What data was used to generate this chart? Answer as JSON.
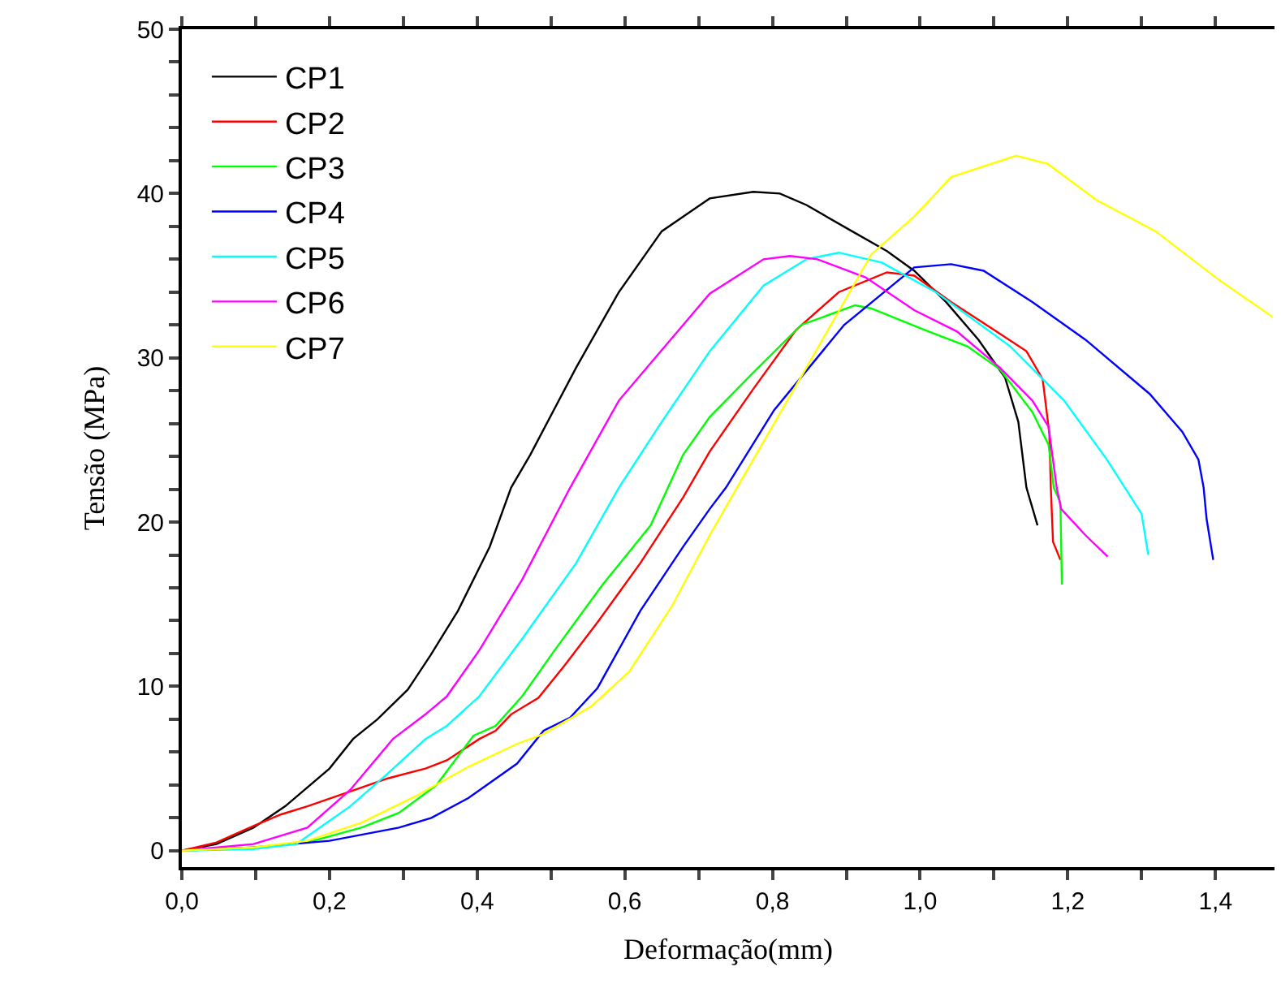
{
  "chart_data": {
    "type": "line",
    "xlabel": "Deformação(mm)",
    "ylabel": "Tensão (MPa)",
    "xlim": [
      0,
      1.48
    ],
    "ylim": [
      -1,
      50
    ],
    "xticks": [
      {
        "value": 0,
        "label": "0,0"
      },
      {
        "value": 0.1,
        "label": null
      },
      {
        "value": 0.2,
        "label": "0,2"
      },
      {
        "value": 0.3,
        "label": null
      },
      {
        "value": 0.4,
        "label": "0,4"
      },
      {
        "value": 0.5,
        "label": null
      },
      {
        "value": 0.6,
        "label": "0,6"
      },
      {
        "value": 0.7,
        "label": null
      },
      {
        "value": 0.8,
        "label": "0,8"
      },
      {
        "value": 0.9,
        "label": null
      },
      {
        "value": 1.0,
        "label": "1,0"
      },
      {
        "value": 1.1,
        "label": null
      },
      {
        "value": 1.2,
        "label": "1,2"
      },
      {
        "value": 1.3,
        "label": null
      },
      {
        "value": 1.4,
        "label": "1,4"
      }
    ],
    "yticks": [
      0,
      {
        "value": 2,
        "label": null
      },
      {
        "value": 4,
        "label": null
      },
      {
        "value": 6,
        "label": null
      },
      {
        "value": 8,
        "label": null
      },
      10,
      {
        "value": 12,
        "label": null
      },
      {
        "value": 14,
        "label": null
      },
      {
        "value": 16,
        "label": null
      },
      {
        "value": 18,
        "label": null
      },
      20,
      {
        "value": 22,
        "label": null
      },
      {
        "value": 24,
        "label": null
      },
      {
        "value": 26,
        "label": null
      },
      {
        "value": 28,
        "label": null
      },
      30,
      {
        "value": 32,
        "label": null
      },
      {
        "value": 34,
        "label": null
      },
      {
        "value": 36,
        "label": null
      },
      {
        "value": 38,
        "label": null
      },
      40,
      {
        "value": 42,
        "label": null
      },
      {
        "value": 44,
        "label": null
      },
      {
        "value": 46,
        "label": null
      },
      {
        "value": 48,
        "label": null
      },
      50
    ],
    "legend": "top left",
    "marker": "none",
    "line_style": "solid",
    "series": [
      {
        "name": "CP1",
        "color": "#000000",
        "x": [
          0,
          0.047,
          0.097,
          0.14,
          0.2,
          0.232,
          0.265,
          0.306,
          0.337,
          0.374,
          0.417,
          0.446,
          0.472,
          0.534,
          0.592,
          0.65,
          0.715,
          0.774,
          0.81,
          0.846,
          0.904,
          0.955,
          0.992,
          1.035,
          1.079,
          1.115,
          1.133,
          1.144,
          1.159
        ],
        "values": [
          0,
          0.4,
          1.4,
          2.7,
          5.0,
          6.8,
          8.0,
          9.8,
          11.9,
          14.6,
          18.5,
          22.1,
          24.1,
          29.4,
          34.0,
          37.7,
          39.7,
          40.1,
          40.0,
          39.3,
          37.8,
          36.5,
          35.3,
          33.4,
          31.1,
          28.8,
          26.1,
          22.1,
          19.8
        ]
      },
      {
        "name": "CP2",
        "color": "#ff0000",
        "x": [
          0,
          0.047,
          0.097,
          0.134,
          0.17,
          0.228,
          0.279,
          0.33,
          0.359,
          0.403,
          0.425,
          0.446,
          0.483,
          0.519,
          0.563,
          0.621,
          0.679,
          0.715,
          0.774,
          0.832,
          0.89,
          0.955,
          0.992,
          1.042,
          1.1,
          1.144,
          1.166,
          1.175,
          1.177,
          1.18,
          1.19
        ],
        "values": [
          0,
          0.5,
          1.5,
          2.2,
          2.7,
          3.6,
          4.4,
          5.0,
          5.5,
          6.8,
          7.3,
          8.3,
          9.3,
          11.3,
          13.9,
          17.5,
          21.5,
          24.3,
          28.1,
          31.7,
          34.0,
          35.2,
          35.0,
          33.4,
          31.7,
          30.4,
          28.7,
          25.4,
          22.1,
          18.8,
          17.7
        ]
      },
      {
        "name": "CP3",
        "color": "#00ff00",
        "x": [
          0,
          0.097,
          0.17,
          0.243,
          0.294,
          0.345,
          0.395,
          0.425,
          0.461,
          0.505,
          0.57,
          0.635,
          0.679,
          0.715,
          0.774,
          0.839,
          0.912,
          0.934,
          1.006,
          1.064,
          1.108,
          1.152,
          1.174,
          1.181,
          1.19,
          1.192
        ],
        "values": [
          0,
          0.2,
          0.5,
          1.4,
          2.3,
          4.0,
          7.0,
          7.6,
          9.4,
          12.2,
          16.2,
          19.8,
          24.1,
          26.4,
          29.1,
          32.0,
          33.2,
          33.0,
          31.7,
          30.7,
          29.3,
          26.7,
          24.7,
          22.1,
          21.2,
          16.2
        ]
      },
      {
        "name": "CP4",
        "color": "#0000ff",
        "x": [
          0,
          0.097,
          0.2,
          0.294,
          0.338,
          0.388,
          0.454,
          0.49,
          0.526,
          0.563,
          0.621,
          0.679,
          0.715,
          0.737,
          0.802,
          0.897,
          0.992,
          1.042,
          1.086,
          1.152,
          1.224,
          1.311,
          1.355,
          1.377,
          1.384,
          1.388,
          1.397
        ],
        "values": [
          0,
          0.2,
          0.6,
          1.4,
          2.0,
          3.2,
          5.3,
          7.3,
          8.1,
          9.9,
          14.6,
          18.5,
          20.8,
          22.1,
          26.8,
          32.0,
          35.5,
          35.7,
          35.3,
          33.4,
          31.1,
          27.8,
          25.5,
          23.8,
          22.1,
          20.2,
          17.7
        ]
      },
      {
        "name": "CP5",
        "color": "#00ffff",
        "x": [
          0,
          0.097,
          0.155,
          0.228,
          0.279,
          0.33,
          0.359,
          0.403,
          0.461,
          0.534,
          0.592,
          0.65,
          0.715,
          0.788,
          0.846,
          0.89,
          0.948,
          1.021,
          1.122,
          1.195,
          1.253,
          1.3,
          1.309
        ],
        "values": [
          0,
          0.1,
          0.4,
          2.7,
          4.7,
          6.8,
          7.6,
          9.4,
          12.9,
          17.5,
          22.1,
          26.1,
          30.4,
          34.4,
          36.0,
          36.4,
          35.8,
          34.0,
          30.7,
          27.4,
          23.8,
          20.5,
          18.0
        ]
      },
      {
        "name": "CP6",
        "color": "#ff00ff",
        "x": [
          0,
          0.097,
          0.17,
          0.228,
          0.286,
          0.33,
          0.359,
          0.403,
          0.461,
          0.526,
          0.592,
          0.679,
          0.715,
          0.788,
          0.824,
          0.861,
          0.926,
          0.992,
          1.05,
          1.108,
          1.152,
          1.174,
          1.185,
          1.191,
          1.224,
          1.254
        ],
        "values": [
          0,
          0.4,
          1.4,
          3.7,
          6.8,
          8.3,
          9.4,
          12.2,
          16.5,
          22.1,
          27.4,
          32.0,
          33.9,
          36.0,
          36.2,
          36.0,
          34.9,
          32.9,
          31.6,
          29.4,
          27.4,
          25.8,
          22.1,
          20.8,
          19.2,
          17.9
        ]
      },
      {
        "name": "CP7",
        "color": "#ffff00",
        "x": [
          0,
          0.097,
          0.17,
          0.243,
          0.316,
          0.388,
          0.454,
          0.49,
          0.555,
          0.606,
          0.664,
          0.715,
          0.752,
          0.846,
          0.934,
          0.992,
          1.042,
          1.13,
          1.173,
          1.239,
          1.319,
          1.406,
          1.477
        ],
        "values": [
          0,
          0.2,
          0.6,
          1.7,
          3.3,
          5.1,
          6.5,
          7.1,
          8.8,
          10.9,
          14.9,
          19.2,
          22.1,
          29.4,
          36.3,
          38.6,
          41.0,
          42.3,
          41.8,
          39.6,
          37.7,
          34.7,
          32.5
        ]
      }
    ]
  }
}
